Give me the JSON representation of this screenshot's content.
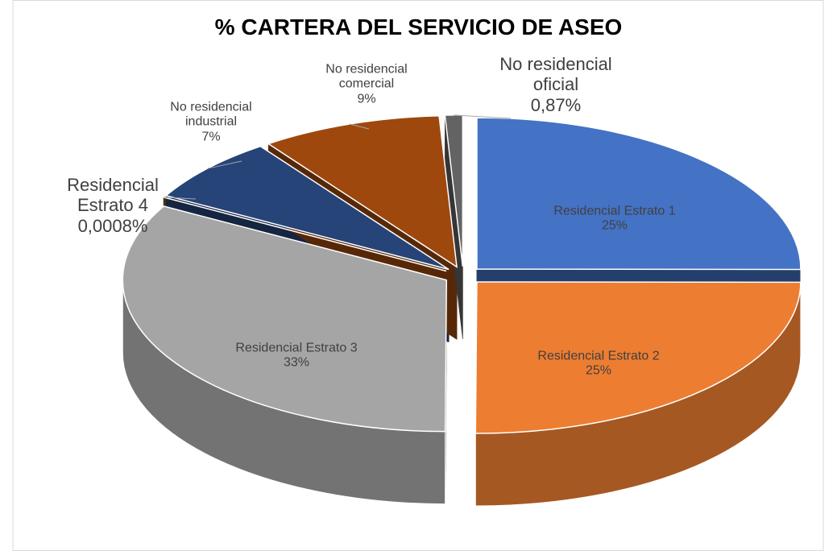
{
  "chart_data": {
    "type": "pie3d",
    "title": "% CARTERA DEL SERVICIO DE ASEO",
    "categories": [
      "Residencial Estrato 1",
      "Residencial Estrato 2",
      "Residencial Estrato 3",
      "Residencial Estrato 4",
      "No residencial industrial",
      "No residencial comercial",
      "No residencial oficial"
    ],
    "values": [
      25,
      25,
      33,
      0.0008,
      7,
      9,
      0.87
    ],
    "value_labels": [
      "25%",
      "25%",
      "33%",
      "0,0008%",
      "7%",
      "9%",
      "0,87%"
    ],
    "colors": [
      "#4472c4",
      "#ed7d31",
      "#a5a5a5",
      "#806000",
      "#264478",
      "#9e480e",
      "#636363"
    ]
  }
}
